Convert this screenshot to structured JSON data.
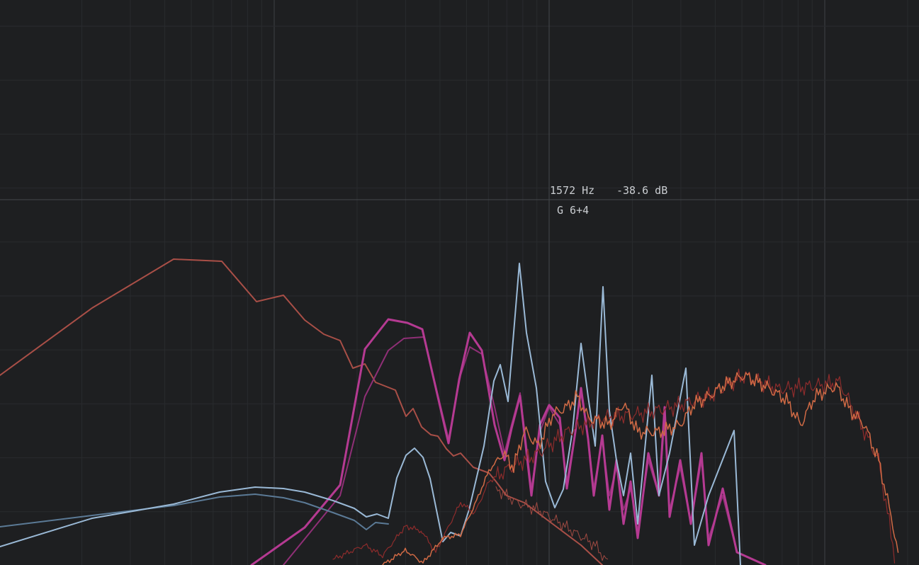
{
  "readout": {
    "frequency": "1572 Hz",
    "level": "-38.6 dB",
    "note": "G 6+4"
  }
}
